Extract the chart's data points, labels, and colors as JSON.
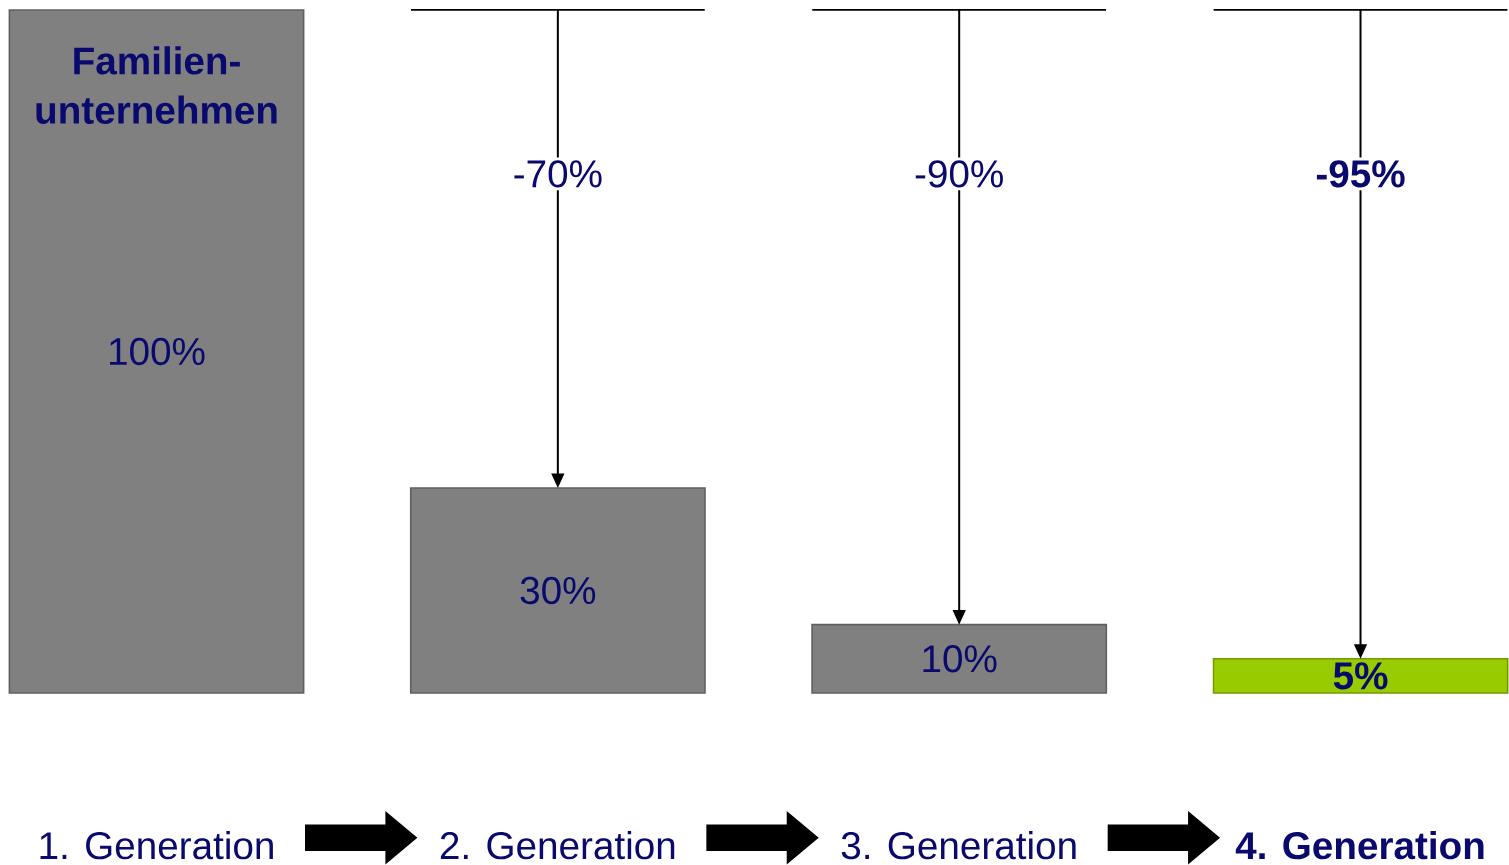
{
  "chart_data": {
    "type": "bar",
    "categories": [
      "1. Generation",
      "2. Generation",
      "3. Generation",
      "**4. Generation**"
    ],
    "values": [
      100,
      30,
      10,
      5
    ],
    "colors": [
      "#808080",
      "#808080",
      "#808080",
      "#99cc00"
    ],
    "value_labels": [
      "100%",
      "30%",
      "10%",
      "**5%**"
    ],
    "annotations": [
      "Familien-unternehmen",
      "-70%",
      "-90%",
      "**-95%**"
    ]
  }
}
